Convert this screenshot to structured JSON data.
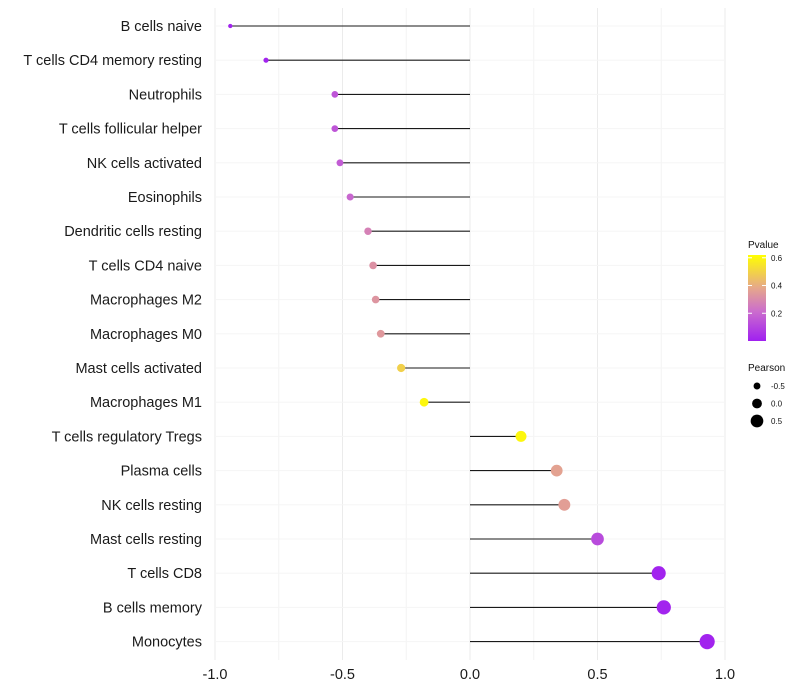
{
  "chart_data": {
    "type": "lollipop",
    "xlim": [
      -1.0,
      1.0
    ],
    "x_ticks": [
      -1.0,
      -0.5,
      0.0,
      0.5,
      1.0
    ],
    "x_tick_labels": [
      "-1.0",
      "-0.5",
      "0.0",
      "0.5",
      "1.0"
    ],
    "grid": true,
    "categories": [
      "B cells naive",
      "T cells CD4 memory resting",
      "Neutrophils",
      "T cells follicular helper",
      "NK cells activated",
      "Eosinophils",
      "Dendritic cells resting",
      "T cells CD4 naive",
      "Macrophages M2",
      "Macrophages M0",
      "Mast cells activated",
      "Macrophages M1",
      "T cells regulatory  Tregs ",
      "Plasma cells",
      "NK cells resting",
      "Mast cells resting",
      "T cells CD8",
      "B cells memory",
      "Monocytes"
    ],
    "pearson": [
      -0.94,
      -0.8,
      -0.53,
      -0.53,
      -0.51,
      -0.47,
      -0.4,
      -0.38,
      -0.37,
      -0.35,
      -0.27,
      -0.18,
      0.2,
      0.34,
      0.37,
      0.5,
      0.74,
      0.76,
      0.93
    ],
    "pvalue": [
      0.01,
      0.01,
      0.15,
      0.15,
      0.17,
      0.2,
      0.28,
      0.33,
      0.34,
      0.35,
      0.5,
      0.6,
      0.6,
      0.38,
      0.37,
      0.12,
      0.01,
      0.01,
      0.01
    ],
    "legend": {
      "pvalue": {
        "title": "Pvalue",
        "ticks": [
          0.2,
          0.4,
          0.6
        ],
        "tick_labels": [
          "0.2",
          "0.4",
          "0.6"
        ],
        "range": [
          0.0,
          0.62
        ],
        "colors": [
          "#ffff00",
          "#e6a88a",
          "#a020f0"
        ]
      },
      "pearson": {
        "title": "Pearson",
        "values": [
          -0.5,
          0.0,
          0.5
        ],
        "labels": [
          "-0.5",
          "0.0",
          "0.5"
        ]
      },
      "placement": "right"
    }
  }
}
